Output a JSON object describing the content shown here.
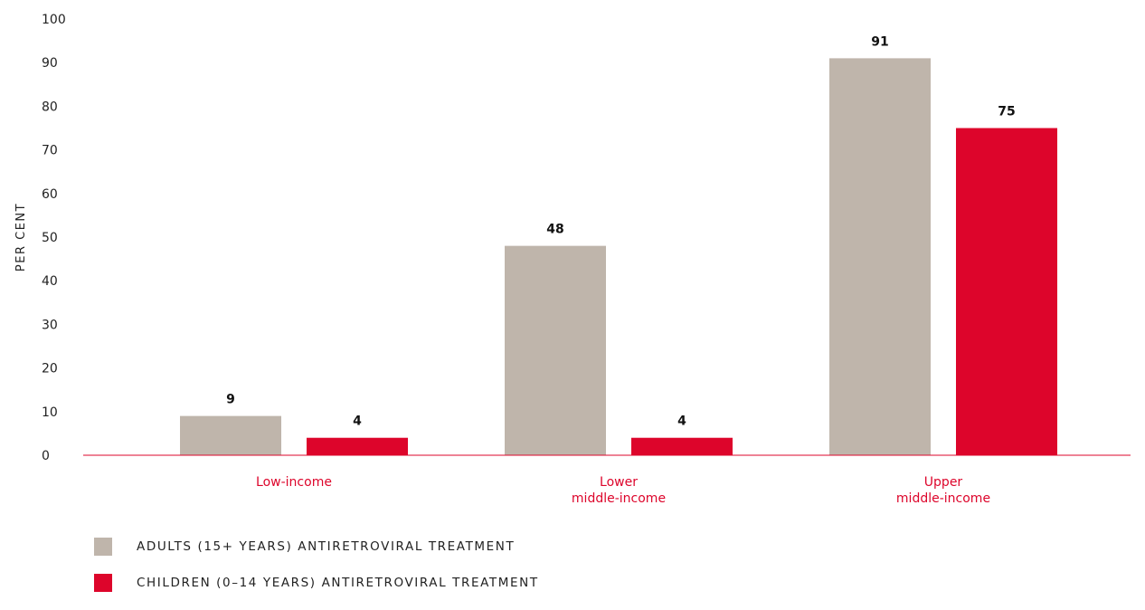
{
  "colors": {
    "adults": "#bfb5ab",
    "children": "#dd052b",
    "axis": "#dd052b",
    "category_text": "#dd052b"
  },
  "chart_data": {
    "type": "bar",
    "categories": [
      [
        "Low-income"
      ],
      [
        "Lower",
        "middle-income"
      ],
      [
        "Upper",
        "middle-income"
      ]
    ],
    "series": [
      {
        "name": "ADULTS (15+ YEARS) ANTIRETROVIRAL TREATMENT",
        "values": [
          9,
          48,
          91
        ]
      },
      {
        "name": "CHILDREN (0–14 YEARS) ANTIRETROVIRAL TREATMENT",
        "values": [
          4,
          4,
          75
        ]
      }
    ],
    "ylabel": "PER CENT",
    "ylim": [
      0,
      100
    ],
    "yticks": [
      0,
      10,
      20,
      30,
      40,
      50,
      60,
      70,
      80,
      90,
      100
    ],
    "grid": false,
    "legend": "bottom-left",
    "data_labels": true
  }
}
